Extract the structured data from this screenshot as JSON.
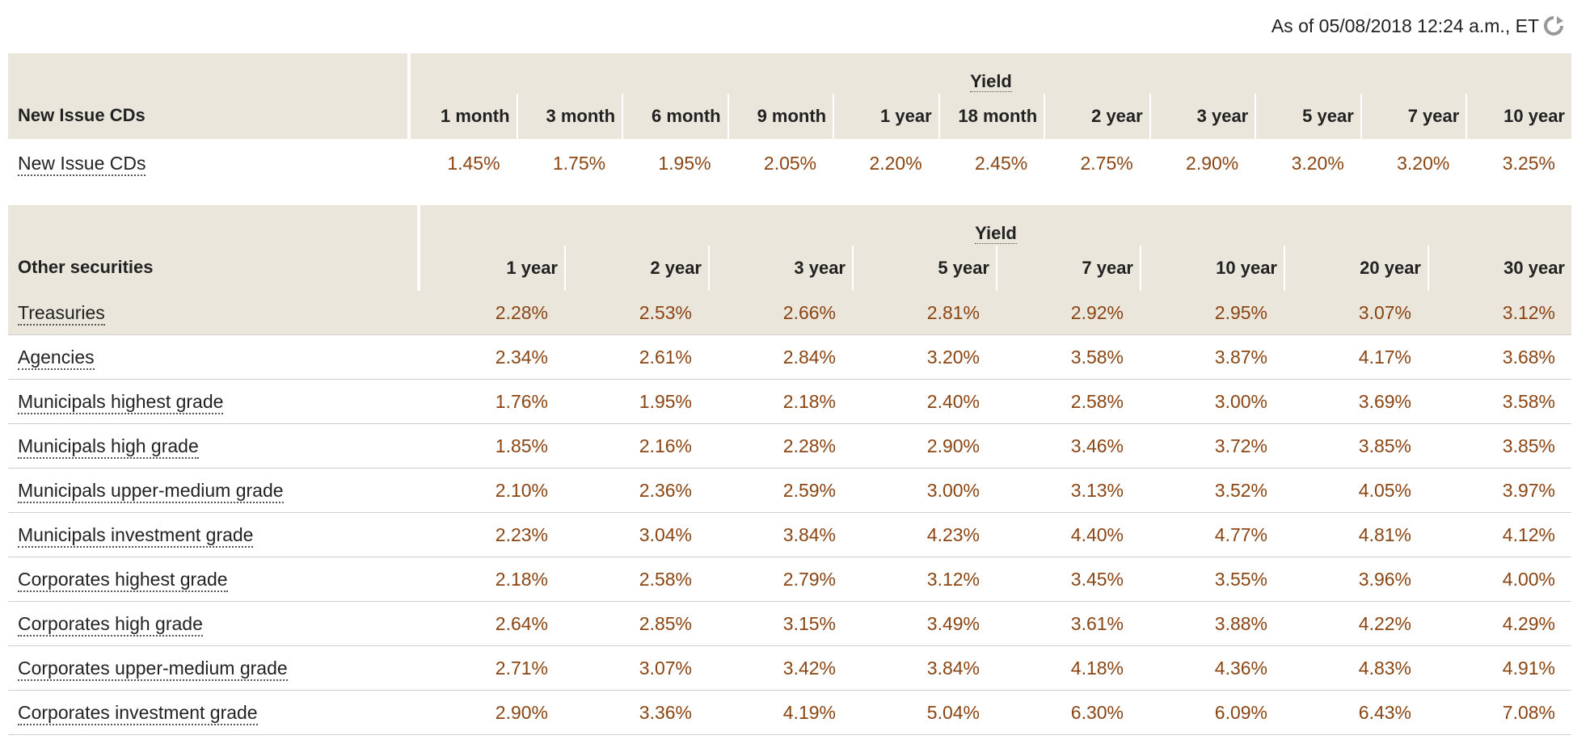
{
  "as_of": "As of 05/08/2018 12:24 a.m., ET",
  "yield_label": "Yield",
  "cds": {
    "header": "New Issue CDs",
    "columns": [
      "1 month",
      "3 month",
      "6 month",
      "9 month",
      "1 year",
      "18 month",
      "2 year",
      "3 year",
      "5 year",
      "7 year",
      "10 year"
    ],
    "rows": [
      {
        "label": "New Issue CDs",
        "values": [
          "1.45%",
          "1.75%",
          "1.95%",
          "2.05%",
          "2.20%",
          "2.45%",
          "2.75%",
          "2.90%",
          "3.20%",
          "3.20%",
          "3.25%"
        ]
      }
    ]
  },
  "other": {
    "header": "Other securities",
    "columns": [
      "1 year",
      "2 year",
      "3 year",
      "5 year",
      "7 year",
      "10 year",
      "20 year",
      "30 year"
    ],
    "rows": [
      {
        "label": "Treasuries",
        "values": [
          "2.28%",
          "2.53%",
          "2.66%",
          "2.81%",
          "2.92%",
          "2.95%",
          "3.07%",
          "3.12%"
        ]
      },
      {
        "label": "Agencies",
        "values": [
          "2.34%",
          "2.61%",
          "2.84%",
          "3.20%",
          "3.58%",
          "3.87%",
          "4.17%",
          "3.68%"
        ]
      },
      {
        "label": "Municipals highest grade",
        "values": [
          "1.76%",
          "1.95%",
          "2.18%",
          "2.40%",
          "2.58%",
          "3.00%",
          "3.69%",
          "3.58%"
        ]
      },
      {
        "label": "Municipals high grade",
        "values": [
          "1.85%",
          "2.16%",
          "2.28%",
          "2.90%",
          "3.46%",
          "3.72%",
          "3.85%",
          "3.85%"
        ]
      },
      {
        "label": "Municipals upper-medium grade",
        "values": [
          "2.10%",
          "2.36%",
          "2.59%",
          "3.00%",
          "3.13%",
          "3.52%",
          "4.05%",
          "3.97%"
        ]
      },
      {
        "label": "Municipals investment grade",
        "values": [
          "2.23%",
          "3.04%",
          "3.84%",
          "4.23%",
          "4.40%",
          "4.77%",
          "4.81%",
          "4.12%"
        ]
      },
      {
        "label": "Corporates highest grade",
        "values": [
          "2.18%",
          "2.58%",
          "2.79%",
          "3.12%",
          "3.45%",
          "3.55%",
          "3.96%",
          "4.00%"
        ]
      },
      {
        "label": "Corporates high grade",
        "values": [
          "2.64%",
          "2.85%",
          "3.15%",
          "3.49%",
          "3.61%",
          "3.88%",
          "4.22%",
          "4.29%"
        ]
      },
      {
        "label": "Corporates upper-medium grade",
        "values": [
          "2.71%",
          "3.07%",
          "3.42%",
          "3.84%",
          "4.18%",
          "4.36%",
          "4.83%",
          "4.91%"
        ]
      },
      {
        "label": "Corporates investment grade",
        "values": [
          "2.90%",
          "3.36%",
          "4.19%",
          "5.04%",
          "6.30%",
          "6.09%",
          "6.43%",
          "7.08%"
        ]
      }
    ]
  },
  "colors": {
    "header_bg": "#eae6dc",
    "value_text": "#8b4513"
  },
  "icons": {
    "refresh": "refresh-icon"
  }
}
